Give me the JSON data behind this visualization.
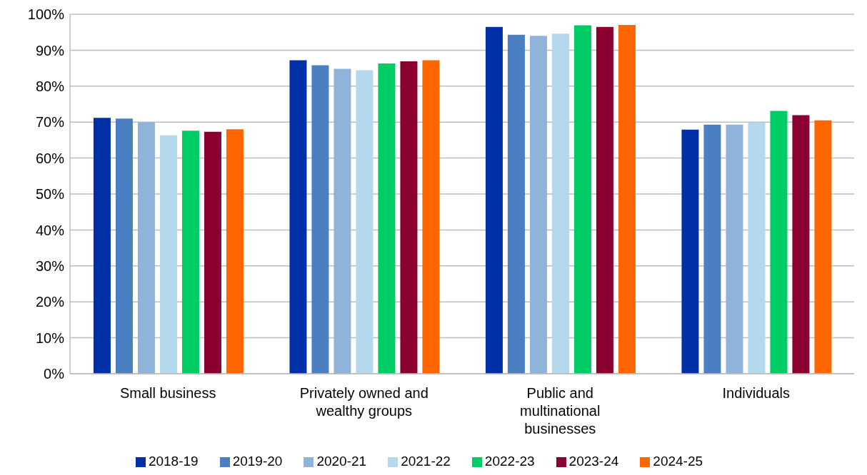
{
  "chart_data": {
    "type": "bar",
    "categories": [
      "Small business",
      "Privately owned and wealthy groups",
      "Public and multinational businesses",
      "Individuals"
    ],
    "series": [
      {
        "name": "2018-19",
        "color": "#0030a8",
        "values": [
          71.2,
          87.2,
          96.5,
          67.9
        ]
      },
      {
        "name": "2019-20",
        "color": "#4a7fc1",
        "values": [
          71.0,
          85.8,
          94.3,
          69.3
        ]
      },
      {
        "name": "2020-21",
        "color": "#90b3da",
        "values": [
          70.0,
          84.8,
          94.0,
          69.3
        ]
      },
      {
        "name": "2021-22",
        "color": "#b4d8ec",
        "values": [
          66.3,
          84.4,
          94.6,
          69.9
        ]
      },
      {
        "name": "2022-23",
        "color": "#00cc66",
        "values": [
          67.6,
          86.3,
          96.9,
          73.1
        ]
      },
      {
        "name": "2023-24",
        "color": "#8a0030",
        "values": [
          67.3,
          86.9,
          96.5,
          71.9
        ]
      },
      {
        "name": "2024-25",
        "color": "#ff6600",
        "values": [
          68.0,
          87.2,
          97.0,
          70.5
        ]
      }
    ],
    "ylim": [
      0,
      100
    ],
    "yticks": [
      {
        "value": 0,
        "label": "0%"
      },
      {
        "value": 10,
        "label": "10%"
      },
      {
        "value": 20,
        "label": "20%"
      },
      {
        "value": 30,
        "label": "30%"
      },
      {
        "value": 40,
        "label": "40%"
      },
      {
        "value": 50,
        "label": "50%"
      },
      {
        "value": 60,
        "label": "60%"
      },
      {
        "value": 70,
        "label": "70%"
      },
      {
        "value": 80,
        "label": "80%"
      },
      {
        "value": 90,
        "label": "90%"
      },
      {
        "value": 100,
        "label": "100%"
      }
    ],
    "grid": "y",
    "legend": "bottom"
  }
}
